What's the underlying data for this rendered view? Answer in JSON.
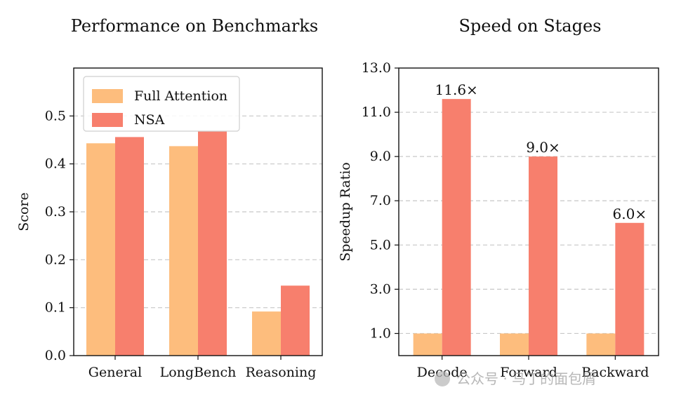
{
  "colors": {
    "full_attention": "#fdbd7d",
    "nsa": "#f77f6d",
    "grid": "#c8c8c8",
    "axis": "#111111"
  },
  "watermark": {
    "text": "公众号 · 马丁的面包屑",
    "icon": "wechat-icon"
  },
  "chart_data": [
    {
      "type": "bar",
      "title": "Performance on Benchmarks",
      "xlabel": "",
      "ylabel": "Score",
      "ylim": [
        0,
        0.6
      ],
      "yticks": [
        "0.0",
        "0.1",
        "0.2",
        "0.3",
        "0.4",
        "0.5"
      ],
      "ytick_values": [
        0,
        0.1,
        0.2,
        0.3,
        0.4,
        0.5
      ],
      "grid": "horizontal dashed",
      "legend": {
        "placement": "top-left",
        "entries": [
          "Full Attention",
          "NSA"
        ]
      },
      "categories": [
        "General",
        "LongBench",
        "Reasoning"
      ],
      "series": [
        {
          "name": "Full Attention",
          "values": [
            0.443,
            0.437,
            0.092
          ]
        },
        {
          "name": "NSA",
          "values": [
            0.456,
            0.469,
            0.146
          ]
        }
      ]
    },
    {
      "type": "bar",
      "title": "Speed on Stages",
      "xlabel": "",
      "ylabel": "Speedup Ratio",
      "ylim": [
        0,
        13.0
      ],
      "yticks": [
        "1.0",
        "3.0",
        "5.0",
        "7.0",
        "9.0",
        "11.0",
        "13.0"
      ],
      "ytick_values": [
        1,
        3,
        5,
        7,
        9,
        11,
        13
      ],
      "grid": "horizontal dashed",
      "categories": [
        "Decode",
        "Forward",
        "Backward"
      ],
      "series": [
        {
          "name": "Full Attention",
          "values": [
            1.0,
            1.0,
            1.0
          ]
        },
        {
          "name": "NSA",
          "values": [
            11.6,
            9.0,
            6.0
          ],
          "labels": [
            "11.6×",
            "9.0×",
            "6.0×"
          ]
        }
      ]
    }
  ]
}
